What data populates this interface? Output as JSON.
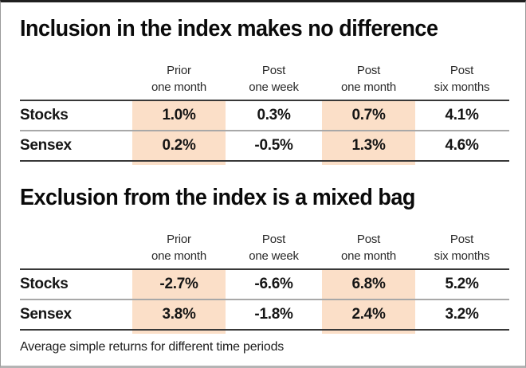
{
  "colors": {
    "highlight": "#fbdfc8",
    "rule_dark": "#383838",
    "rule_light": "#a8a8a8",
    "frame_top": "#1f1f1f",
    "frame_side": "#9a9a9a",
    "frame_bottom": "#b4b4b4"
  },
  "tables": [
    {
      "title": "Inclusion in the index makes no difference",
      "headers": [
        {
          "top": "Prior",
          "bottom": "one month"
        },
        {
          "top": "Post",
          "bottom": "one week"
        },
        {
          "top": "Post",
          "bottom": "one month"
        },
        {
          "top": "Post",
          "bottom": "six months"
        }
      ],
      "rows": [
        {
          "label": "Stocks",
          "values": [
            "1.0%",
            "0.3%",
            "0.7%",
            "4.1%"
          ]
        },
        {
          "label": "Sensex",
          "values": [
            "0.2%",
            "-0.5%",
            "1.3%",
            "4.6%"
          ]
        }
      ],
      "highlighted_columns": [
        "Prior one month",
        "Post one month"
      ]
    },
    {
      "title": "Exclusion from the index is a mixed bag",
      "headers": [
        {
          "top": "Prior",
          "bottom": "one month"
        },
        {
          "top": "Post",
          "bottom": "one week"
        },
        {
          "top": "Post",
          "bottom": "one month"
        },
        {
          "top": "Post",
          "bottom": "six months"
        }
      ],
      "rows": [
        {
          "label": "Stocks",
          "values": [
            "-2.7%",
            "-6.6%",
            "6.8%",
            "5.2%"
          ]
        },
        {
          "label": "Sensex",
          "values": [
            "3.8%",
            "-1.8%",
            "2.4%",
            "3.2%"
          ]
        }
      ],
      "highlighted_columns": [
        "Prior one month",
        "Post one month"
      ]
    }
  ],
  "footnote": "Average simple returns for different time periods",
  "chart_data": [
    {
      "type": "table",
      "title": "Inclusion in the index makes no difference",
      "columns": [
        "",
        "Prior one month",
        "Post one week",
        "Post one month",
        "Post six months"
      ],
      "rows": [
        [
          "Stocks",
          "1.0%",
          "0.3%",
          "0.7%",
          "4.1%"
        ],
        [
          "Sensex",
          "0.2%",
          "-0.5%",
          "1.3%",
          "4.6%"
        ]
      ],
      "highlighted_columns": [
        "Prior one month",
        "Post one month"
      ]
    },
    {
      "type": "table",
      "title": "Exclusion from the index is a mixed bag",
      "columns": [
        "",
        "Prior one month",
        "Post one week",
        "Post one month",
        "Post six months"
      ],
      "rows": [
        [
          "Stocks",
          "-2.7%",
          "-6.6%",
          "6.8%",
          "5.2%"
        ],
        [
          "Sensex",
          "3.8%",
          "-1.8%",
          "2.4%",
          "3.2%"
        ]
      ],
      "highlighted_columns": [
        "Prior one month",
        "Post one month"
      ]
    }
  ]
}
